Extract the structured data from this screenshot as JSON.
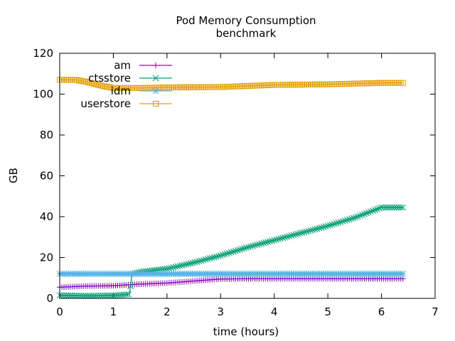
{
  "chart_data": {
    "type": "line",
    "title": "Pod Memory Consumption",
    "subtitle": "benchmark",
    "xlabel": "time (hours)",
    "ylabel": "GB",
    "xlim": [
      0,
      7
    ],
    "ylim": [
      0,
      120
    ],
    "xticks": [
      0,
      1,
      2,
      3,
      4,
      5,
      6,
      7
    ],
    "yticks": [
      0,
      20,
      40,
      60,
      80,
      100,
      120
    ],
    "grid": false,
    "legend_position": "top-left",
    "series": [
      {
        "name": "am",
        "color": "#9400d3",
        "marker": "plus",
        "x": [
          0.0,
          0.5,
          1.0,
          1.5,
          2.0,
          2.5,
          3.0,
          3.5,
          4.0,
          4.5,
          5.0,
          5.5,
          6.0,
          6.4
        ],
        "y": [
          5.5,
          6.0,
          6.2,
          7.0,
          7.5,
          8.5,
          9.5,
          9.6,
          9.6,
          9.6,
          9.6,
          9.6,
          9.6,
          9.6
        ]
      },
      {
        "name": "ctsstore",
        "color": "#009e73",
        "marker": "x",
        "x": [
          0.0,
          0.5,
          1.0,
          1.3,
          1.35,
          1.5,
          2.0,
          2.5,
          3.0,
          3.5,
          4.0,
          4.5,
          5.0,
          5.5,
          5.8,
          6.0,
          6.4
        ],
        "y": [
          1.5,
          1.2,
          1.4,
          2.0,
          12.0,
          13.0,
          14.5,
          17.5,
          21.0,
          25.0,
          28.5,
          32.0,
          35.5,
          39.5,
          42.5,
          44.5,
          44.5
        ]
      },
      {
        "name": "idm",
        "color": "#56b4e9",
        "marker": "star",
        "x": [
          0.0,
          0.5,
          1.0,
          1.5,
          2.0,
          2.5,
          3.0,
          3.5,
          4.0,
          4.5,
          5.0,
          5.5,
          6.0,
          6.4
        ],
        "y": [
          12.0,
          12.0,
          12.0,
          12.0,
          12.0,
          12.0,
          12.0,
          12.0,
          12.0,
          12.0,
          12.0,
          12.0,
          12.0,
          12.0
        ]
      },
      {
        "name": "userstore",
        "color": "#e69f00",
        "marker": "square",
        "x": [
          0.0,
          0.3,
          0.5,
          0.8,
          1.0,
          1.5,
          2.0,
          3.0,
          4.0,
          5.0,
          6.0,
          6.4
        ],
        "y": [
          107.0,
          107.0,
          106.0,
          104.0,
          103.0,
          103.0,
          103.3,
          103.5,
          104.5,
          104.8,
          105.5,
          105.5
        ]
      }
    ]
  }
}
